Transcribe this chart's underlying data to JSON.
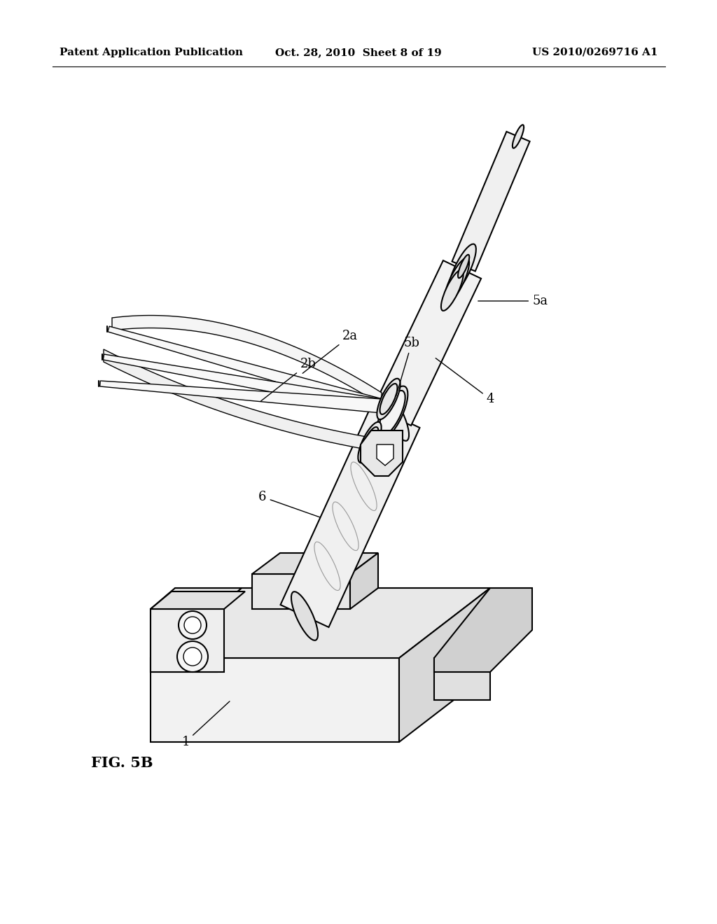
{
  "title_left": "Patent Application Publication",
  "title_center": "Oct. 28, 2010  Sheet 8 of 19",
  "title_right": "US 2010/0269716 A1",
  "fig_label": "FIG. 5B",
  "background_color": "#ffffff",
  "line_color": "#000000",
  "fig_label_fontsize": 15,
  "header_fontsize": 11,
  "label_fontsize": 13
}
